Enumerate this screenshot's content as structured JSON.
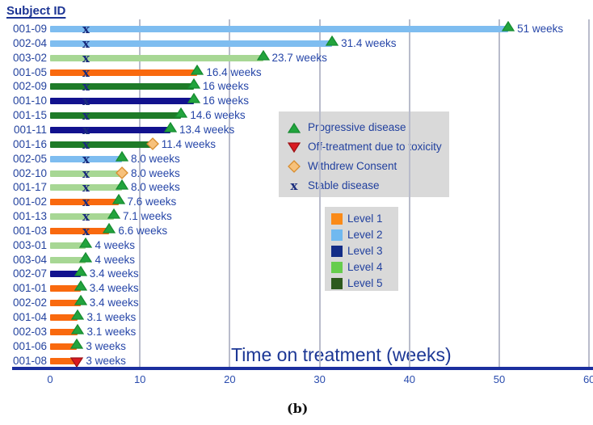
{
  "title": "Subject ID",
  "caption": "(b)",
  "axis": {
    "label": "Time on treatment (weeks)",
    "ticks": [
      "0",
      "10",
      "20",
      "30",
      "40",
      "50",
      "60"
    ],
    "tick_values": [
      0,
      10,
      20,
      30,
      40,
      50,
      60
    ],
    "gridline_weeks": [
      10,
      20,
      30,
      40,
      50,
      60
    ],
    "range": [
      0,
      60
    ]
  },
  "colors": {
    "text_navy": "#21409e",
    "axis_line": "#1b2f9e",
    "gridline": "#b9bccb",
    "legend_bg": "#d9d9d9",
    "progressive_fill": "#22a43d",
    "progressive_stroke": "#178c31",
    "toxicity_fill": "#da1a20",
    "toxicity_stroke": "#9e1216",
    "withdrew_fill": "#f7c17b",
    "withdrew_stroke": "#d88d2f",
    "stable_x": "#1a2c7d",
    "bar_levels": {
      "1": "#f9690e",
      "2": "#7ebdf0",
      "3": "#12128e",
      "4": "#a7d794",
      "5": "#1e7b28"
    },
    "legend_levels": {
      "1": "#fa8a18",
      "2": "#70b9f0",
      "3": "#132c87",
      "4": "#66cd4d",
      "5": "#2d5a1e"
    }
  },
  "marker_legend": {
    "items": [
      {
        "icon": "progressive-disease",
        "shape": "triangle-up",
        "label": "Progressive disease"
      },
      {
        "icon": "toxicity",
        "shape": "triangle-down",
        "label": "Off-treatment due to toxicity"
      },
      {
        "icon": "withdrew-consent",
        "shape": "diamond",
        "label": "Withdrew Consent"
      },
      {
        "icon": "stable-disease",
        "shape": "x",
        "label": "Stable disease"
      }
    ]
  },
  "level_legend": {
    "items": [
      {
        "label": "Level 1",
        "level": "1"
      },
      {
        "label": "Level 2",
        "level": "2"
      },
      {
        "label": "Level 3",
        "level": "3"
      },
      {
        "label": "Level 4",
        "level": "4"
      },
      {
        "label": "Level 5",
        "level": "5"
      }
    ]
  },
  "chart_data": {
    "type": "bar",
    "subtype": "swimmer",
    "orientation": "horizontal",
    "xlabel": "Time on treatment (weeks)",
    "xlim": [
      0,
      60
    ],
    "grid": true,
    "rows": [
      {
        "subject": "001-09",
        "weeks": 51,
        "label": "51 weeks",
        "level": "2",
        "end_marker": "triangle-up",
        "stable_x_week": 4
      },
      {
        "subject": "002-04",
        "weeks": 31.4,
        "label": "31.4 weeks",
        "level": "2",
        "end_marker": "triangle-up",
        "stable_x_week": 4
      },
      {
        "subject": "003-02",
        "weeks": 23.7,
        "label": "23.7 weeks",
        "level": "4",
        "end_marker": "triangle-up",
        "stable_x_week": 4
      },
      {
        "subject": "001-05",
        "weeks": 16.4,
        "label": "16.4 weeks",
        "level": "1",
        "end_marker": "triangle-up",
        "stable_x_week": 4
      },
      {
        "subject": "002-09",
        "weeks": 16,
        "label": "16 weeks",
        "level": "5",
        "end_marker": "triangle-up",
        "stable_x_week": 4
      },
      {
        "subject": "001-10",
        "weeks": 16,
        "label": "16 weeks",
        "level": "3",
        "end_marker": "triangle-up",
        "stable_x_week": 4
      },
      {
        "subject": "001-15",
        "weeks": 14.6,
        "label": "14.6 weeks",
        "level": "5",
        "end_marker": "triangle-up",
        "stable_x_week": 4
      },
      {
        "subject": "001-11",
        "weeks": 13.4,
        "label": "13.4 weeks",
        "level": "3",
        "end_marker": "triangle-up",
        "stable_x_week": 4
      },
      {
        "subject": "001-16",
        "weeks": 11.4,
        "label": "11.4 weeks",
        "level": "5",
        "end_marker": "diamond",
        "stable_x_week": 4
      },
      {
        "subject": "002-05",
        "weeks": 8,
        "label": "8.0 weeks",
        "level": "2",
        "end_marker": "triangle-up",
        "stable_x_week": 4
      },
      {
        "subject": "002-10",
        "weeks": 8,
        "label": "8.0 weeks",
        "level": "4",
        "end_marker": "diamond",
        "stable_x_week": 4
      },
      {
        "subject": "001-17",
        "weeks": 8,
        "label": "8.0 weeks",
        "level": "4",
        "end_marker": "triangle-up",
        "stable_x_week": 4
      },
      {
        "subject": "001-02",
        "weeks": 7.6,
        "label": "7.6 weeks",
        "level": "1",
        "end_marker": "triangle-up",
        "stable_x_week": 4
      },
      {
        "subject": "001-13",
        "weeks": 7.1,
        "label": "7.1 weeks",
        "level": "4",
        "end_marker": "triangle-up",
        "stable_x_week": 4
      },
      {
        "subject": "001-03",
        "weeks": 6.6,
        "label": "6.6 weeks",
        "level": "1",
        "end_marker": "triangle-up",
        "stable_x_week": 4
      },
      {
        "subject": "003-01",
        "weeks": 4,
        "label": "4 weeks",
        "level": "4",
        "end_marker": "triangle-up",
        "stable_x_week": null
      },
      {
        "subject": "003-04",
        "weeks": 4,
        "label": "4 weeks",
        "level": "4",
        "end_marker": "triangle-up",
        "stable_x_week": null
      },
      {
        "subject": "002-07",
        "weeks": 3.4,
        "label": "3.4 weeks",
        "level": "3",
        "end_marker": "triangle-up",
        "stable_x_week": null
      },
      {
        "subject": "001-01",
        "weeks": 3.4,
        "label": "3.4 weeks",
        "level": "1",
        "end_marker": "triangle-up",
        "stable_x_week": null
      },
      {
        "subject": "002-02",
        "weeks": 3.4,
        "label": "3.4 weeks",
        "level": "1",
        "end_marker": "triangle-up",
        "stable_x_week": null
      },
      {
        "subject": "001-04",
        "weeks": 3.1,
        "label": "3.1 weeks",
        "level": "1",
        "end_marker": "triangle-up",
        "stable_x_week": null
      },
      {
        "subject": "002-03",
        "weeks": 3.1,
        "label": "3.1 weeks",
        "level": "1",
        "end_marker": "triangle-up",
        "stable_x_week": null
      },
      {
        "subject": "001-06",
        "weeks": 3,
        "label": "3 weeks",
        "level": "1",
        "end_marker": "triangle-up",
        "stable_x_week": null
      },
      {
        "subject": "001-08",
        "weeks": 3,
        "label": "3 weeks",
        "level": "1",
        "end_marker": "triangle-down",
        "stable_x_week": null
      }
    ]
  }
}
